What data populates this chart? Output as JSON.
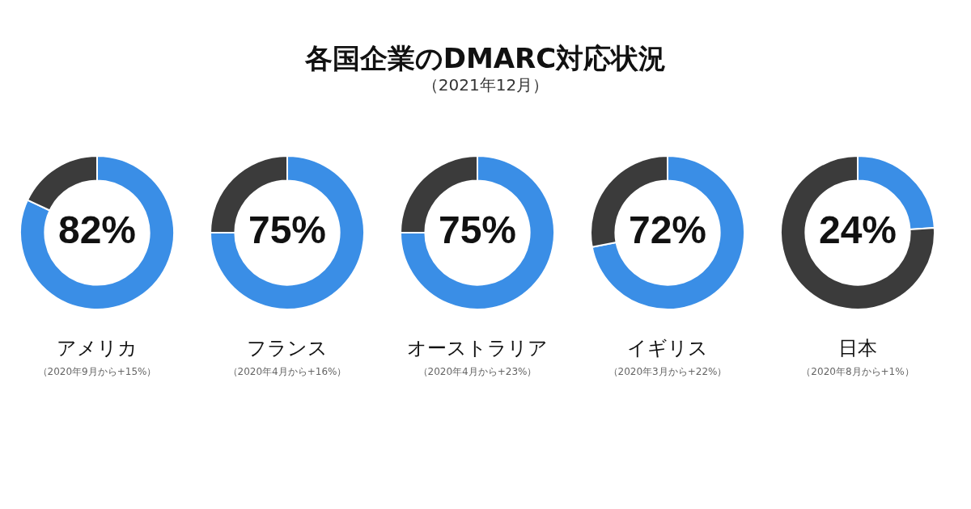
{
  "chart_data": [
    {
      "type": "other",
      "title": "各国企業のDMARC対応状況",
      "subtitle": "（2021年12月）"
    },
    {
      "type": "donut",
      "title": "アメリカ",
      "categories": [
        null,
        null
      ],
      "values": [
        82,
        18
      ],
      "colors": [
        "#3a8ee6",
        "#3b3b3b"
      ],
      "value_labels": [
        "82%",
        null
      ],
      "annotations": [
        "（2020年9月から+15%）"
      ]
    },
    {
      "type": "donut",
      "title": "フランス",
      "categories": [
        null,
        null
      ],
      "values": [
        75,
        25
      ],
      "colors": [
        "#3a8ee6",
        "#3b3b3b"
      ],
      "value_labels": [
        "75%",
        null
      ],
      "annotations": [
        "（2020年4月から+16%）"
      ]
    },
    {
      "type": "donut",
      "title": "オーストラリア",
      "categories": [
        null,
        null
      ],
      "values": [
        75,
        25
      ],
      "colors": [
        "#3a8ee6",
        "#3b3b3b"
      ],
      "value_labels": [
        "75%",
        null
      ],
      "annotations": [
        "（2020年4月から+23%）"
      ]
    },
    {
      "type": "donut",
      "title": "イギリス",
      "categories": [
        null,
        null
      ],
      "values": [
        72,
        28
      ],
      "colors": [
        "#3a8ee6",
        "#3b3b3b"
      ],
      "value_labels": [
        "72%",
        null
      ],
      "annotations": [
        "（2020年3月から+22%）"
      ]
    },
    {
      "type": "donut",
      "title": "日本",
      "categories": [
        null,
        null
      ],
      "values": [
        24,
        76
      ],
      "colors": [
        "#3a8ee6",
        "#3b3b3b"
      ],
      "value_labels": [
        "24%",
        null
      ],
      "annotations": [
        "（2020年8月から+1%）"
      ]
    }
  ]
}
